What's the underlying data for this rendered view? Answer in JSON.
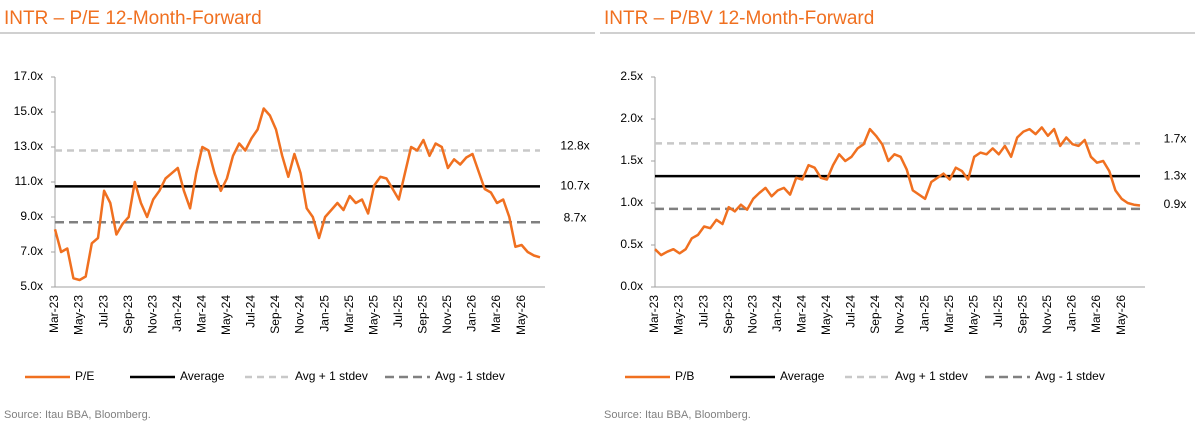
{
  "chart_data": [
    {
      "type": "line",
      "title": "INTR – P/E 12-Month-Forward",
      "source": "Source: Itau BBA, Bloomberg.",
      "categories": [
        "Mar-23",
        null,
        null,
        null,
        "May-23",
        null,
        null,
        null,
        "Jul-23",
        null,
        null,
        null,
        "Sep-23",
        null,
        null,
        null,
        "Nov-23",
        null,
        null,
        null,
        "Jan-24",
        null,
        null,
        null,
        "Mar-24",
        null,
        null,
        null,
        "May-24",
        null,
        null,
        null,
        "Jul-24",
        null,
        null,
        null,
        "Sep-24",
        null,
        null,
        null,
        "Nov-24",
        null,
        null,
        null,
        "Jan-25",
        null,
        null,
        null,
        "Mar-25",
        null,
        null,
        null,
        "May-25",
        null,
        null,
        null,
        "Jul-25",
        null,
        null,
        null,
        "Sep-25",
        null,
        null,
        null,
        "Nov-25",
        null,
        null,
        null,
        "Jan-26",
        null,
        null,
        null,
        "Mar-26",
        null,
        null,
        null,
        "May-26",
        null,
        null,
        null
      ],
      "series": [
        {
          "name": "P/E",
          "color": "#f07020",
          "values": [
            8.3,
            7.0,
            7.2,
            5.5,
            5.4,
            5.6,
            7.5,
            7.8,
            10.5,
            9.8,
            8.0,
            8.6,
            9.0,
            11.0,
            9.8,
            9.0,
            10.0,
            10.5,
            11.2,
            11.5,
            11.8,
            10.5,
            9.5,
            11.5,
            13.0,
            12.8,
            11.5,
            10.5,
            11.2,
            12.5,
            13.2,
            12.8,
            13.5,
            14.0,
            15.2,
            14.8,
            14.0,
            12.5,
            11.3,
            12.6,
            11.5,
            9.5,
            9.0,
            7.8,
            9.0,
            9.4,
            9.8,
            9.4,
            10.2,
            9.8,
            10.0,
            9.2,
            10.8,
            11.3,
            11.2,
            10.6,
            10.0,
            11.5,
            13.0,
            12.8,
            13.4,
            12.5,
            13.2,
            13.0,
            11.8,
            12.3,
            12.0,
            12.4,
            12.6,
            11.6,
            10.6,
            10.4,
            9.8,
            10.0,
            9.0,
            7.3,
            7.4,
            7.0,
            6.8,
            6.7
          ]
        }
      ],
      "lines": [
        {
          "name": "Average",
          "value": 10.75,
          "value_label": "10.7x",
          "color": "#000000",
          "dash": "none"
        },
        {
          "name": "Avg + 1 stdev",
          "value": 12.8,
          "value_label": "12.8x",
          "color": "#c8c8c8",
          "dash": "7,5"
        },
        {
          "name": "Avg - 1 stdev",
          "value": 8.7,
          "value_label": "8.7x",
          "color": "#808080",
          "dash": "9,5"
        }
      ],
      "ylim": [
        5,
        17
      ],
      "yticks": [
        {
          "value": 5,
          "label": "5.0x"
        },
        {
          "value": 7,
          "label": "7.0x"
        },
        {
          "value": 9,
          "label": "9.0x"
        },
        {
          "value": 11,
          "label": "11.0x"
        },
        {
          "value": 13,
          "label": "13.0x"
        },
        {
          "value": 15,
          "label": "15.0x"
        },
        {
          "value": 17,
          "label": "17.0x"
        }
      ],
      "grid": false
    },
    {
      "type": "line",
      "title": "INTR – P/BV 12-Month-Forward",
      "source": "Source: Itau BBA, Bloomberg.",
      "categories": [
        "Mar-23",
        null,
        null,
        null,
        "May-23",
        null,
        null,
        null,
        "Jul-23",
        null,
        null,
        null,
        "Sep-23",
        null,
        null,
        null,
        "Nov-23",
        null,
        null,
        null,
        "Jan-24",
        null,
        null,
        null,
        "Mar-24",
        null,
        null,
        null,
        "May-24",
        null,
        null,
        null,
        "Jul-24",
        null,
        null,
        null,
        "Sep-24",
        null,
        null,
        null,
        "Nov-24",
        null,
        null,
        null,
        "Jan-25",
        null,
        null,
        null,
        "Mar-25",
        null,
        null,
        null,
        "May-25",
        null,
        null,
        null,
        "Jul-25",
        null,
        null,
        null,
        "Sep-25",
        null,
        null,
        null,
        "Nov-25",
        null,
        null,
        null,
        "Jan-26",
        null,
        null,
        null,
        "Mar-26",
        null,
        null,
        null,
        "May-26",
        null,
        null,
        null
      ],
      "series": [
        {
          "name": "P/B",
          "color": "#f07020",
          "values": [
            0.45,
            0.38,
            0.42,
            0.45,
            0.4,
            0.45,
            0.58,
            0.62,
            0.72,
            0.7,
            0.8,
            0.75,
            0.95,
            0.9,
            0.98,
            0.92,
            1.05,
            1.12,
            1.18,
            1.08,
            1.15,
            1.18,
            1.1,
            1.3,
            1.28,
            1.45,
            1.42,
            1.3,
            1.28,
            1.45,
            1.58,
            1.5,
            1.55,
            1.65,
            1.7,
            1.88,
            1.8,
            1.7,
            1.5,
            1.58,
            1.55,
            1.4,
            1.15,
            1.1,
            1.05,
            1.25,
            1.3,
            1.35,
            1.28,
            1.42,
            1.38,
            1.28,
            1.55,
            1.6,
            1.58,
            1.65,
            1.58,
            1.68,
            1.55,
            1.78,
            1.85,
            1.88,
            1.82,
            1.9,
            1.8,
            1.88,
            1.68,
            1.78,
            1.7,
            1.68,
            1.75,
            1.55,
            1.48,
            1.5,
            1.38,
            1.15,
            1.05,
            1.0,
            0.98,
            0.97
          ]
        }
      ],
      "lines": [
        {
          "name": "Average",
          "value": 1.32,
          "value_label": "1.3x",
          "color": "#000000",
          "dash": "none"
        },
        {
          "name": "Avg + 1 stdev",
          "value": 1.71,
          "value_label": "1.7x",
          "color": "#c8c8c8",
          "dash": "7,5"
        },
        {
          "name": "Avg - 1 stdev",
          "value": 0.93,
          "value_label": "0.9x",
          "color": "#808080",
          "dash": "9,5"
        }
      ],
      "ylim": [
        0,
        2.5
      ],
      "yticks": [
        {
          "value": 0,
          "label": "0.0x"
        },
        {
          "value": 0.5,
          "label": "0.5x"
        },
        {
          "value": 1,
          "label": "1.0x"
        },
        {
          "value": 1.5,
          "label": "1.5x"
        },
        {
          "value": 2,
          "label": "2.0x"
        },
        {
          "value": 2.5,
          "label": "2.5x"
        }
      ],
      "grid": false
    }
  ]
}
